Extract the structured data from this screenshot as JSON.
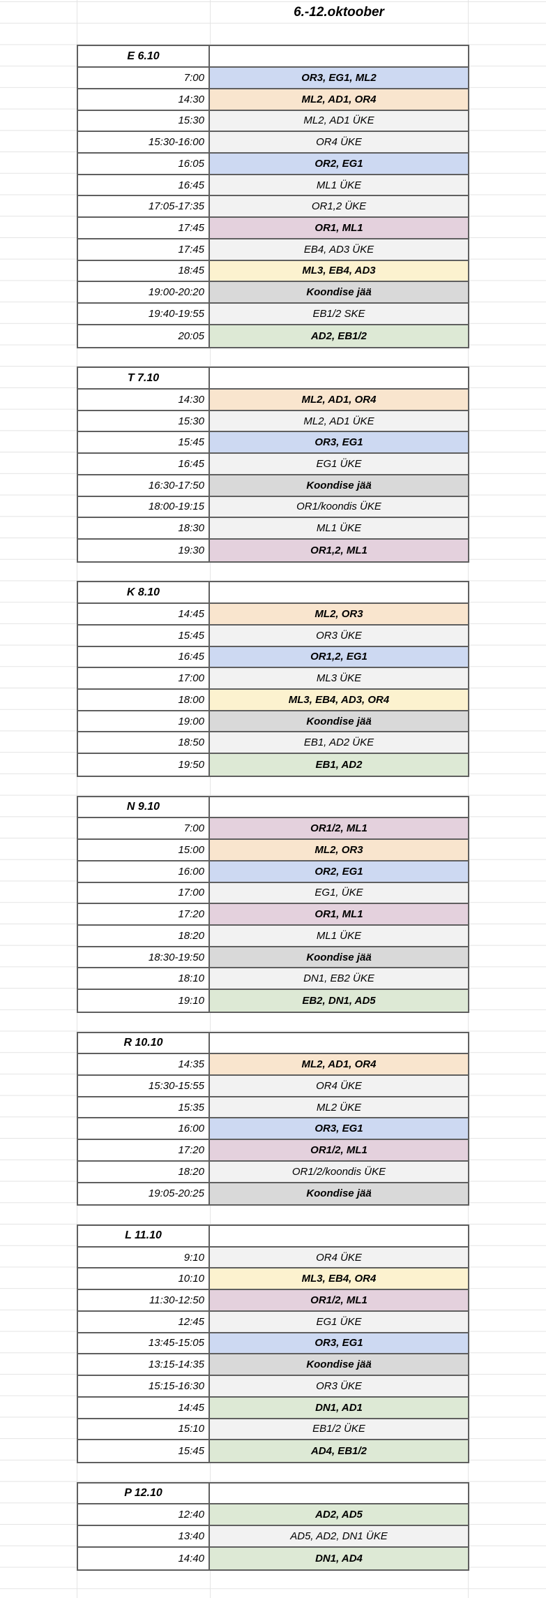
{
  "sheet": {
    "title": "6.-12.oktoober",
    "grid_color": "#e4e4e4",
    "border_color": "#5f5f5f",
    "palette": {
      "blue": {
        "bg": "#cdd9f2",
        "bold": true
      },
      "orange": {
        "bg": "#f9e5ce",
        "bold": true
      },
      "lightgray": {
        "bg": "#f2f2f2",
        "bold": false
      },
      "pink": {
        "bg": "#e4d1dd",
        "bold": true
      },
      "yellow": {
        "bg": "#fcf2cf",
        "bold": true
      },
      "gray": {
        "bg": "#d9d9d9",
        "bold": true
      },
      "green": {
        "bg": "#dde9d5",
        "bold": true
      }
    },
    "days": [
      {
        "label": "E 6.10",
        "rows": [
          {
            "time": "7:00",
            "text": "OR3, EG1, ML2",
            "type": "blue"
          },
          {
            "time": "14:30",
            "text": "ML2, AD1, OR4",
            "type": "orange"
          },
          {
            "time": "15:30",
            "text": "ML2, AD1 ÜKE",
            "type": "lightgray"
          },
          {
            "time": "15:30-16:00",
            "text": "OR4 ÜKE",
            "type": "lightgray"
          },
          {
            "time": "16:05",
            "text": "OR2, EG1",
            "type": "blue"
          },
          {
            "time": "16:45",
            "text": "ML1 ÜKE",
            "type": "lightgray"
          },
          {
            "time": "17:05-17:35",
            "text": "OR1,2 ÜKE",
            "type": "lightgray"
          },
          {
            "time": "17:45",
            "text": "OR1, ML1",
            "type": "pink"
          },
          {
            "time": "17:45",
            "text": "EB4, AD3 ÜKE",
            "type": "lightgray"
          },
          {
            "time": "18:45",
            "text": "ML3, EB4, AD3",
            "type": "yellow"
          },
          {
            "time": "19:00-20:20",
            "text": "Koondise jää",
            "type": "gray"
          },
          {
            "time": "19:40-19:55",
            "text": "EB1/2 SKE",
            "type": "lightgray"
          },
          {
            "time": "20:05",
            "text": "AD2, EB1/2",
            "type": "green"
          }
        ]
      },
      {
        "label": "T 7.10",
        "rows": [
          {
            "time": "14:30",
            "text": "ML2, AD1, OR4",
            "type": "orange"
          },
          {
            "time": "15:30",
            "text": "ML2, AD1 ÜKE",
            "type": "lightgray"
          },
          {
            "time": "15:45",
            "text": "OR3, EG1",
            "type": "blue"
          },
          {
            "time": "16:45",
            "text": "EG1 ÜKE",
            "type": "lightgray"
          },
          {
            "time": "16:30-17:50",
            "text": "Koondise jää",
            "type": "gray"
          },
          {
            "time": "18:00-19:15",
            "text": "OR1/koondis ÜKE",
            "type": "lightgray"
          },
          {
            "time": "18:30",
            "text": "ML1 ÜKE",
            "type": "lightgray"
          },
          {
            "time": "19:30",
            "text": "OR1,2, ML1",
            "type": "pink"
          }
        ]
      },
      {
        "label": "K 8.10",
        "rows": [
          {
            "time": "14:45",
            "text": "ML2, OR3",
            "type": "orange"
          },
          {
            "time": "15:45",
            "text": "OR3 ÜKE",
            "type": "lightgray"
          },
          {
            "time": "16:45",
            "text": "OR1,2, EG1",
            "type": "blue"
          },
          {
            "time": "17:00",
            "text": "ML3 ÜKE",
            "type": "lightgray"
          },
          {
            "time": "18:00",
            "text": "ML3, EB4, AD3, OR4",
            "type": "yellow"
          },
          {
            "time": "19:00",
            "text": "Koondise jää",
            "type": "gray"
          },
          {
            "time": "18:50",
            "text": "EB1, AD2 ÜKE",
            "type": "lightgray"
          },
          {
            "time": "19:50",
            "text": "EB1, AD2",
            "type": "green"
          }
        ]
      },
      {
        "label": "N 9.10",
        "rows": [
          {
            "time": "7:00",
            "text": "OR1/2, ML1",
            "type": "pink"
          },
          {
            "time": "15:00",
            "text": "ML2, OR3",
            "type": "orange"
          },
          {
            "time": "16:00",
            "text": "OR2, EG1",
            "type": "blue"
          },
          {
            "time": "17:00",
            "text": "EG1, ÜKE",
            "type": "lightgray"
          },
          {
            "time": "17:20",
            "text": "OR1, ML1",
            "type": "pink"
          },
          {
            "time": "18:20",
            "text": "ML1 ÜKE",
            "type": "lightgray"
          },
          {
            "time": "18:30-19:50",
            "text": "Koondise jää",
            "type": "gray"
          },
          {
            "time": "18:10",
            "text": "DN1, EB2 ÜKE",
            "type": "lightgray"
          },
          {
            "time": "19:10",
            "text": "EB2, DN1, AD5",
            "type": "green"
          }
        ]
      },
      {
        "label": "R 10.10",
        "rows": [
          {
            "time": "14:35",
            "text": "ML2, AD1, OR4",
            "type": "orange"
          },
          {
            "time": "15:30-15:55",
            "text": "OR4 ÜKE",
            "type": "lightgray"
          },
          {
            "time": "15:35",
            "text": "ML2 ÜKE",
            "type": "lightgray"
          },
          {
            "time": "16:00",
            "text": "OR3, EG1",
            "type": "blue"
          },
          {
            "time": "17:20",
            "text": "OR1/2, ML1",
            "type": "pink"
          },
          {
            "time": "18:20",
            "text": "OR1/2/koondis ÜKE",
            "type": "lightgray"
          },
          {
            "time": "19:05-20:25",
            "text": "Koondise jää",
            "type": "gray"
          }
        ]
      },
      {
        "label": "L 11.10",
        "rows": [
          {
            "time": "9:10",
            "text": "OR4 ÜKE",
            "type": "lightgray"
          },
          {
            "time": "10:10",
            "text": "ML3, EB4, OR4",
            "type": "yellow"
          },
          {
            "time": "11:30-12:50",
            "text": "OR1/2, ML1",
            "type": "pink"
          },
          {
            "time": "12:45",
            "text": "EG1 ÜKE",
            "type": "lightgray"
          },
          {
            "time": "13:45-15:05",
            "text": "OR3, EG1",
            "type": "blue"
          },
          {
            "time": "13:15-14:35",
            "text": "Koondise jää",
            "type": "gray"
          },
          {
            "time": "15:15-16:30",
            "text": "OR3 ÜKE",
            "type": "lightgray"
          },
          {
            "time": "14:45",
            "text": "DN1, AD1",
            "type": "green"
          },
          {
            "time": "15:10",
            "text": "EB1/2 ÜKE",
            "type": "lightgray"
          },
          {
            "time": "15:45",
            "text": "AD4, EB1/2",
            "type": "green"
          }
        ]
      },
      {
        "label": "P 12.10",
        "rows": [
          {
            "time": "12:40",
            "text": "AD2, AD5",
            "type": "green"
          },
          {
            "time": "13:40",
            "text": "AD5, AD2, DN1 ÜKE",
            "type": "lightgray"
          },
          {
            "time": "14:40",
            "text": "DN1, AD4",
            "type": "green"
          }
        ]
      }
    ]
  }
}
